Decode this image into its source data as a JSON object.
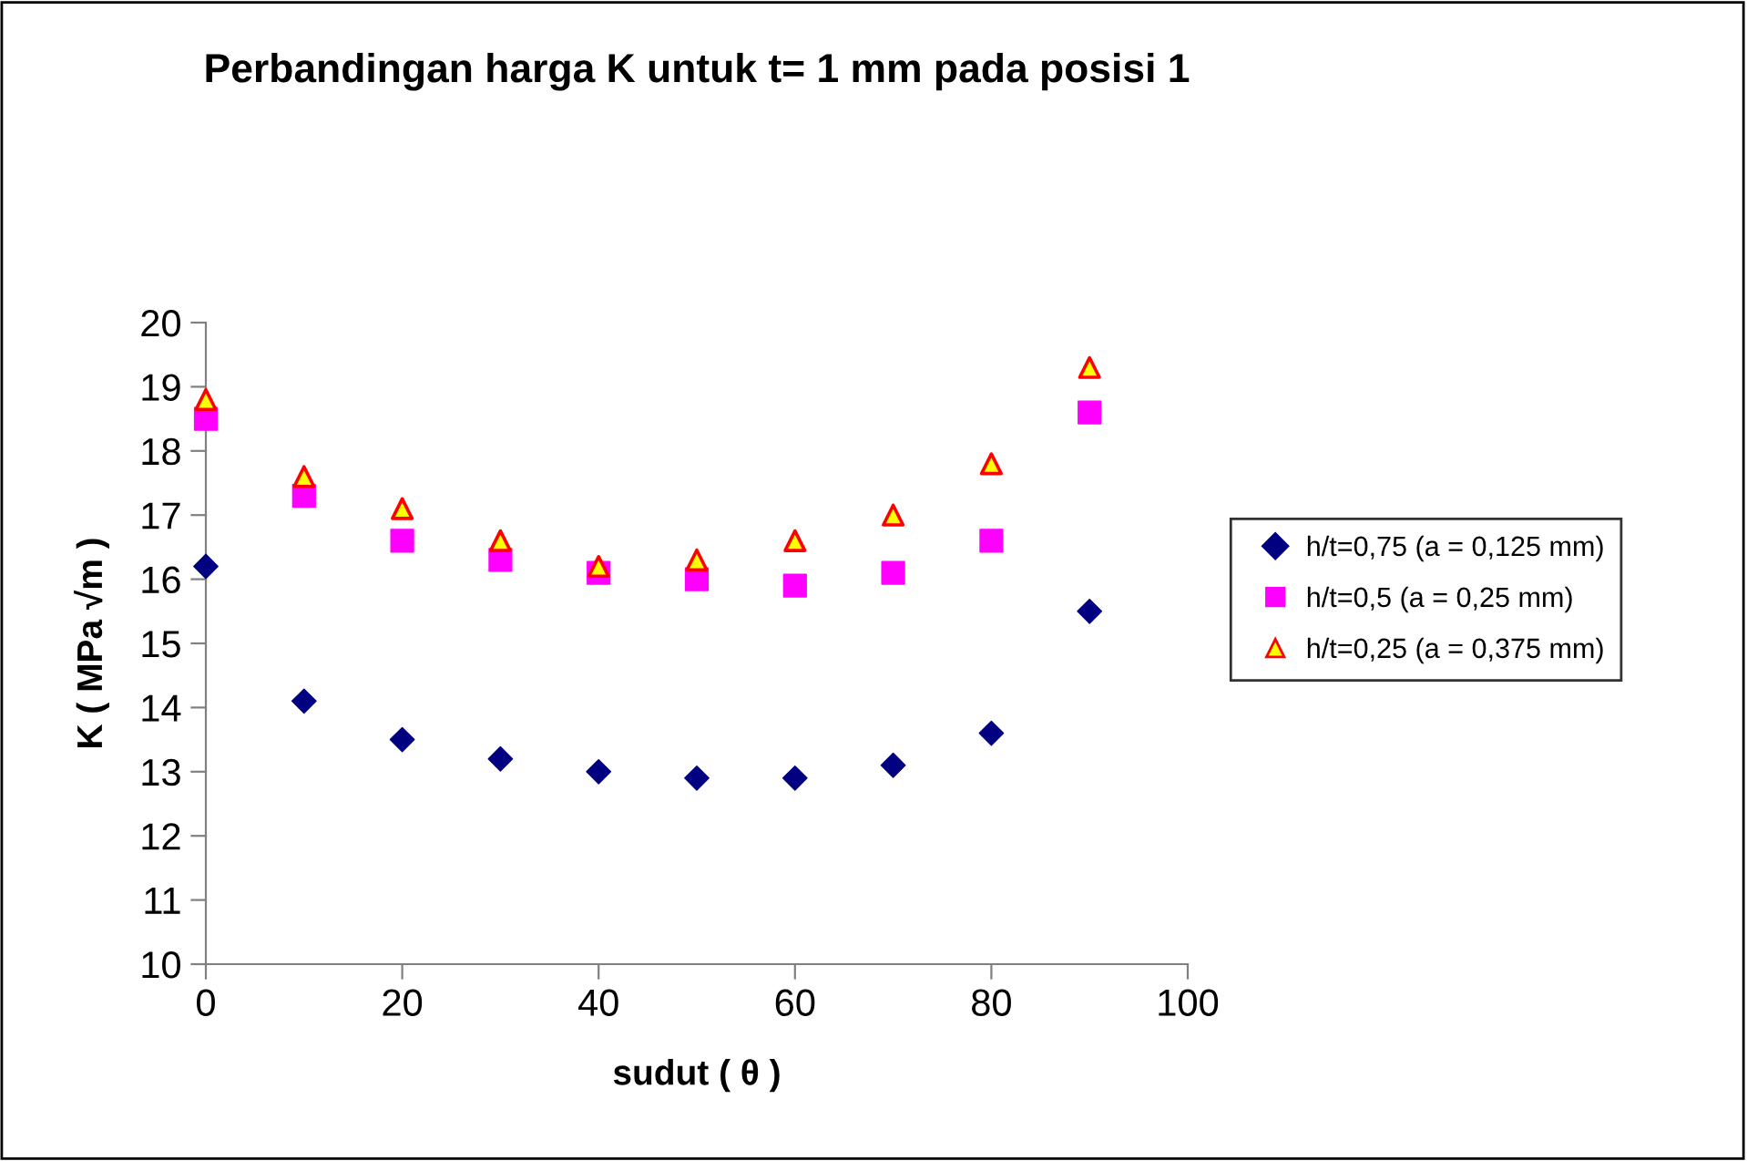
{
  "chart_data": {
    "type": "scatter",
    "title": "Perbandingan harga K untuk t= 1 mm pada posisi 1",
    "xlabel": "sudut ( θ )",
    "ylabel": "K ( MPa √m )",
    "x": [
      0,
      10,
      20,
      30,
      40,
      50,
      60,
      70,
      80,
      90
    ],
    "series": [
      {
        "name": "h/t=0,75 (a = 0,125 mm)",
        "color": "#000080",
        "marker": "diamond",
        "values": [
          16.2,
          14.1,
          13.5,
          13.2,
          13.0,
          12.9,
          12.9,
          13.1,
          13.6,
          15.5
        ]
      },
      {
        "name": "h/t=0,5 (a = 0,25 mm)",
        "color": "#ff00ff",
        "marker": "square",
        "values": [
          18.5,
          17.3,
          16.6,
          16.3,
          16.1,
          16.0,
          15.9,
          16.1,
          16.6,
          18.6
        ]
      },
      {
        "name": "h/t=0,25 (a = 0,375 mm)",
        "color": "#ffff00",
        "marker": "triangle",
        "values": [
          18.8,
          17.6,
          17.1,
          16.6,
          16.2,
          16.3,
          16.6,
          17.0,
          17.8,
          19.3
        ]
      }
    ],
    "xlim": [
      0,
      100
    ],
    "xticks": [
      0,
      20,
      40,
      60,
      80,
      100
    ],
    "ylim": [
      10,
      20
    ],
    "yticks": [
      10,
      11,
      12,
      13,
      14,
      15,
      16,
      17,
      18,
      19,
      20
    ],
    "grid": false,
    "legend": "right"
  }
}
